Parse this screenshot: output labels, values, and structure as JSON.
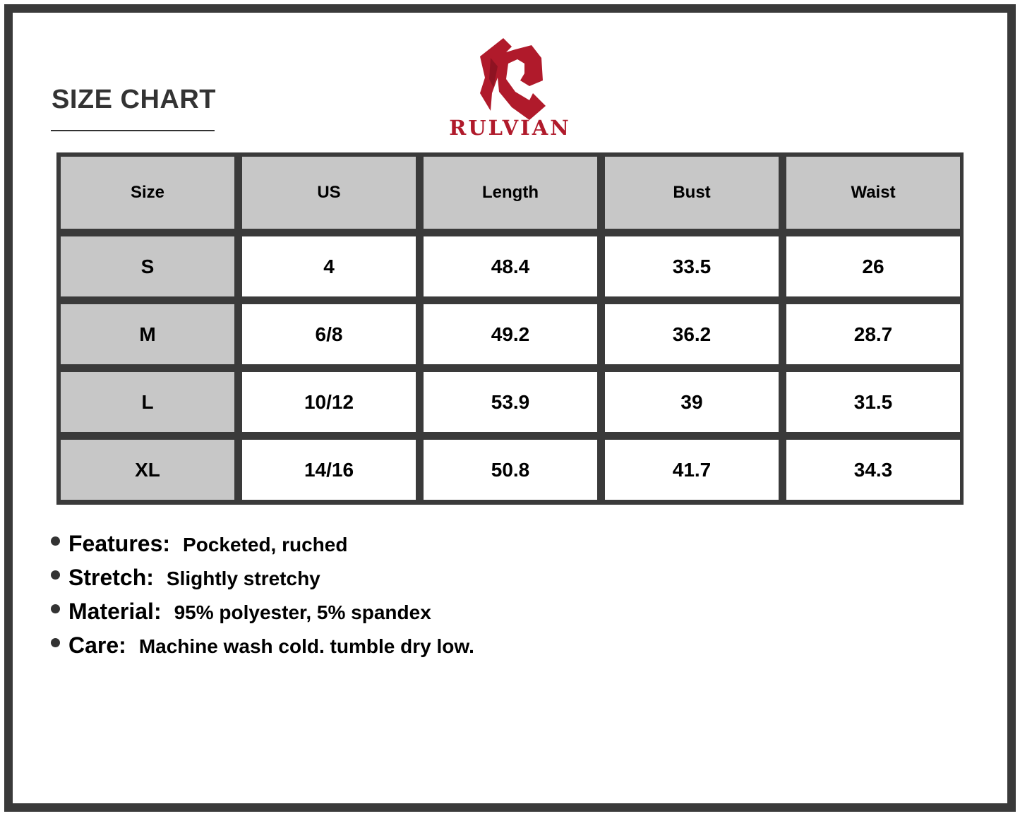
{
  "header": {
    "title": "SIZE CHART"
  },
  "logo": {
    "brand": "RULVIAN",
    "color": "#b01a2b"
  },
  "table": {
    "columns": [
      "Size",
      "US",
      "Length",
      "Bust",
      "Waist"
    ],
    "rows": [
      [
        "S",
        "4",
        "48.4",
        "33.5",
        "26"
      ],
      [
        "M",
        "6/8",
        "49.2",
        "36.2",
        "28.7"
      ],
      [
        "L",
        "10/12",
        "53.9",
        "39",
        "31.5"
      ],
      [
        "XL",
        "14/16",
        "50.8",
        "41.7",
        "34.3"
      ]
    ]
  },
  "features": [
    {
      "label": "Features:",
      "value": "Pocketed, ruched"
    },
    {
      "label": "Stretch:",
      "value": "Slightly stretchy"
    },
    {
      "label": "Material:",
      "value": "95% polyester, 5% spandex"
    },
    {
      "label": "Care:",
      "value": "Machine wash cold. tumble dry low."
    }
  ]
}
